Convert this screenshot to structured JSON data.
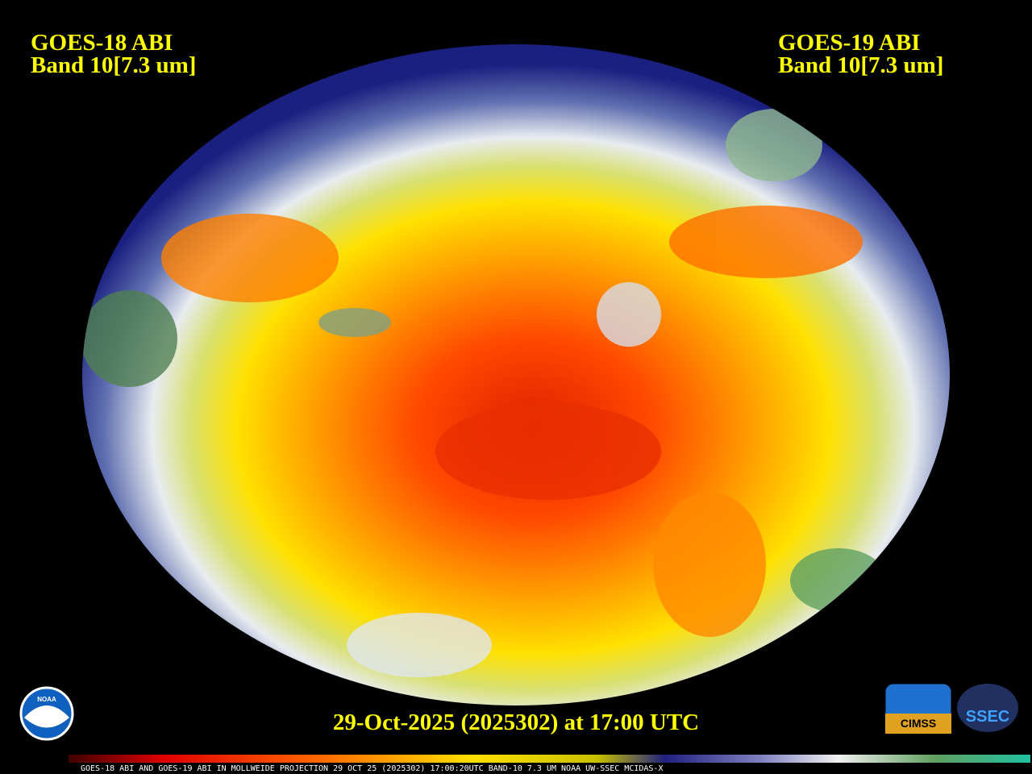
{
  "header": {
    "left": {
      "title": "GOES-18 ABI",
      "band": "Band 10[7.3 um]"
    },
    "right": {
      "title": "GOES-19 ABI",
      "band": "Band 10[7.3 um]"
    }
  },
  "timestamp": "29-Oct-2025 (2025302) at 17:00 UTC",
  "caption": "GOES-18 ABI AND GOES-19 ABI IN MOLLWEIDE PROJECTION 29 OCT 25 (2025302) 17:00:20UTC BAND-10 7.3 UM NOAA UW-SSEC MCIDAS-X",
  "logos": {
    "noaa": "NOAA",
    "cimss": "CIMSS",
    "ssec": "SSEC"
  }
}
